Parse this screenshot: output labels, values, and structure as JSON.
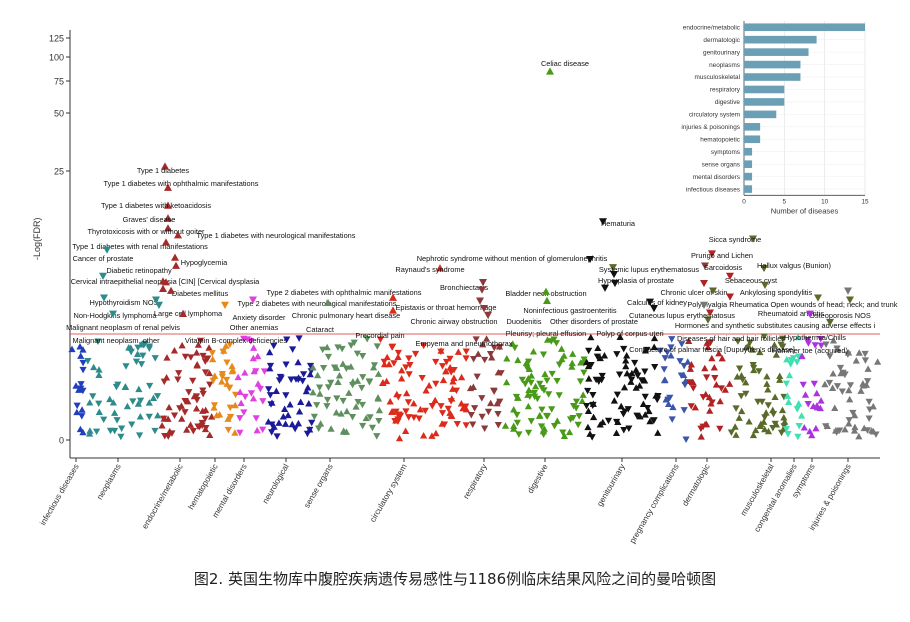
{
  "caption": "图2. 英国生物库中腹腔疾病遗传易感性与1186例临床结果风险之间的曼哈顿图",
  "chart_data": [
    {
      "type": "scatter",
      "title": "",
      "ylabel": "-Log(FDR)",
      "xlabel": "",
      "y_ticks": [
        0,
        25,
        50,
        75,
        100,
        125
      ],
      "y_scale": "compressed (sqrt-like)",
      "grid": false,
      "significance_line": true,
      "categories": [
        {
          "name": "infectious diseases",
          "color": "#1f3fbf"
        },
        {
          "name": "neoplasms",
          "color": "#2e8b8b"
        },
        {
          "name": "endocrine/metabolic",
          "color": "#a52a2a"
        },
        {
          "name": "hematopoietic",
          "color": "#e68a1c"
        },
        {
          "name": "mental disorders",
          "color": "#e040e0"
        },
        {
          "name": "neurological",
          "color": "#1a1a9a"
        },
        {
          "name": "sense organs",
          "color": "#5f8f5f"
        },
        {
          "name": "circulatory system",
          "color": "#dd2a1a"
        },
        {
          "name": "respiratory",
          "color": "#8b3a3a"
        },
        {
          "name": "digestive",
          "color": "#4a9a1a"
        },
        {
          "name": "genitourinary",
          "color": "#111111"
        },
        {
          "name": "pregnancy complications",
          "color": "#3a55aa"
        },
        {
          "name": "dermatologic",
          "color": "#b22222"
        },
        {
          "name": "musculoskeletal",
          "color": "#5a6a2a"
        },
        {
          "name": "congenital anomalies",
          "color": "#40e0b0"
        },
        {
          "name": "symptoms",
          "color": "#aa33dd"
        },
        {
          "name": "injuries & poisonings",
          "color": "#777777"
        }
      ],
      "labeled_points": [
        {
          "label": "Celiac disease",
          "category": "digestive",
          "y": 85,
          "marker": "up"
        },
        {
          "label": "Type 1 diabetes",
          "category": "endocrine/metabolic",
          "y": 27,
          "marker": "up"
        },
        {
          "label": "Type 1 diabetes with ophthalmic manifestations",
          "category": "endocrine/metabolic",
          "y": 22,
          "marker": "up"
        },
        {
          "label": "Type 1 diabetes with ketoacidosis",
          "category": "endocrine/metabolic",
          "y": 19,
          "marker": "up"
        },
        {
          "label": "Graves' disease",
          "category": "endocrine/metabolic",
          "y": 17,
          "marker": "up"
        },
        {
          "label": "Thyrotoxicosis with or without goiter",
          "category": "endocrine/metabolic",
          "y": 15.5,
          "marker": "up"
        },
        {
          "label": "Type 1 diabetes with neurological manifestations",
          "category": "endocrine/metabolic",
          "y": 14.5,
          "marker": "up"
        },
        {
          "label": "Type 1 diabetes with renal manifestations",
          "category": "endocrine/metabolic",
          "y": 13.5,
          "marker": "up"
        },
        {
          "label": "Cancer of prostate",
          "category": "neoplasms",
          "y": 12.5,
          "marker": "down"
        },
        {
          "label": "Hypoglycemia",
          "category": "endocrine/metabolic",
          "y": 11.5,
          "marker": "up"
        },
        {
          "label": "Diabetic retinopathy",
          "category": "endocrine/metabolic",
          "y": 10.5,
          "marker": "up"
        },
        {
          "label": "Cervical intraepithelial neoplasia [CIN] [Cervical dysplasia",
          "category": "neoplasms",
          "y": 9.3,
          "marker": "down"
        },
        {
          "label": "Diabetes mellitus",
          "category": "endocrine/metabolic",
          "y": 8.7,
          "marker": "up"
        },
        {
          "label": "Type 2 diabetes with ophthalmic manifestations",
          "category": "endocrine/metabolic",
          "y": 8.6,
          "marker": "up"
        },
        {
          "label": "Hypothyroidism NOS",
          "category": "endocrine/metabolic",
          "y": 7.9,
          "marker": "up"
        },
        {
          "label": "Type 2 diabetes with neurological manifestations",
          "category": "endocrine/metabolic",
          "y": 7.7,
          "marker": "up"
        },
        {
          "label": "Non-Hodgkins lymphoma",
          "category": "neoplasms",
          "y": 7.0,
          "marker": "down"
        },
        {
          "label": "Large cell lymphoma",
          "category": "neoplasms",
          "y": 6.8,
          "marker": "down"
        },
        {
          "label": "Malignant neoplasm of renal pelvis",
          "category": "neoplasms",
          "y": 6.3,
          "marker": "down"
        },
        {
          "label": "Anxiety disorder",
          "category": "mental disorders",
          "y": 6.8,
          "marker": "down"
        },
        {
          "label": "Other anemias",
          "category": "hematopoietic",
          "y": 6.3,
          "marker": "down"
        },
        {
          "label": "Malignant neoplasm, other",
          "category": "neoplasms",
          "y": 5.5,
          "marker": "down"
        },
        {
          "label": "Vitamin B-complex deficiencies",
          "category": "endocrine/metabolic",
          "y": 5.5,
          "marker": "up"
        },
        {
          "label": "Chronic pulmonary heart disease",
          "category": "circulatory system",
          "y": 7.0,
          "marker": "up"
        },
        {
          "label": "Cataract",
          "category": "sense organs",
          "y": 6.5,
          "marker": "up"
        },
        {
          "label": "Precordial pain",
          "category": "circulatory system",
          "y": 5.8,
          "marker": "up"
        },
        {
          "label": "Raynaud's syndrome",
          "category": "circulatory system",
          "y": 10.2,
          "marker": "up"
        },
        {
          "label": "Bronchiectasis",
          "category": "respiratory",
          "y": 8.6,
          "marker": "down"
        },
        {
          "label": "Epistaxis or throat hemorrhage",
          "category": "respiratory",
          "y": 7.8,
          "marker": "down"
        },
        {
          "label": "Chronic airway obstruction",
          "category": "respiratory",
          "y": 6.7,
          "marker": "down"
        },
        {
          "label": "Empyema and pneumothorax",
          "category": "respiratory",
          "y": 5.4,
          "marker": "down"
        },
        {
          "label": "Nephrotic syndrome without mention of glomerulonephritis",
          "category": "genitourinary",
          "y": 11.3,
          "marker": "down"
        },
        {
          "label": "Hematuria",
          "category": "genitourinary",
          "y": 16.5,
          "marker": "down"
        },
        {
          "label": "Systemic lupus erythematosus",
          "category": "musculoskeletal",
          "y": 10.3,
          "marker": "down"
        },
        {
          "label": "Hyperplasia of prostate",
          "category": "genitourinary",
          "y": 9.5,
          "marker": "down"
        },
        {
          "label": "Bladder neck obstruction",
          "category": "genitourinary",
          "y": 8.5,
          "marker": "down"
        },
        {
          "label": "Calculus of kidney",
          "category": "genitourinary",
          "y": 8.0,
          "marker": "down"
        },
        {
          "label": "Noninfectious gastroenteritis",
          "category": "digestive",
          "y": 7.6,
          "marker": "up"
        },
        {
          "label": "Duodenitis",
          "category": "digestive",
          "y": 6.7,
          "marker": "up"
        },
        {
          "label": "Other disorders of prostate",
          "category": "genitourinary",
          "y": 6.6,
          "marker": "down"
        },
        {
          "label": "Pleurisy; pleural effusion",
          "category": "respiratory",
          "y": 6.0,
          "marker": "down"
        },
        {
          "label": "Polyp of corpus uteri",
          "category": "genitourinary",
          "y": 6.0,
          "marker": "down"
        },
        {
          "label": "Contracture of palmar fascia [Dupuytren's disease]",
          "category": "musculoskeletal",
          "y": 5.0,
          "marker": "down"
        },
        {
          "label": "Sicca syndrome",
          "category": "musculoskeletal",
          "y": 14.0,
          "marker": "down"
        },
        {
          "label": "Prurigo and Lichen",
          "category": "dermatologic",
          "y": 12.0,
          "marker": "down"
        },
        {
          "label": "Sarcoidosis",
          "category": "respiratory",
          "y": 10.5,
          "marker": "down"
        },
        {
          "label": "Hallux valgus (Bunion)",
          "category": "musculoskeletal",
          "y": 10.2,
          "marker": "down"
        },
        {
          "label": "Sebaceous cyst",
          "category": "dermatologic",
          "y": 9.3,
          "marker": "down"
        },
        {
          "label": "Chronic ulcer of skin",
          "category": "dermatologic",
          "y": 8.5,
          "marker": "down"
        },
        {
          "label": "Ankylosing spondylitis",
          "category": "musculoskeletal",
          "y": 8.3,
          "marker": "down"
        },
        {
          "label": "Polymyalgia Rheumatica",
          "category": "musculoskeletal",
          "y": 7.7,
          "marker": "down"
        },
        {
          "label": "Open wounds of head; neck; and trunk",
          "category": "injuries & poisonings",
          "y": 7.7,
          "marker": "down"
        },
        {
          "label": "Cutaneous lupus erythematosus",
          "category": "dermatologic",
          "y": 7.1,
          "marker": "down"
        },
        {
          "label": "Rheumatoid arthritis",
          "category": "musculoskeletal",
          "y": 7.0,
          "marker": "down"
        },
        {
          "label": "Osteoporosis NOS",
          "category": "musculoskeletal",
          "y": 6.8,
          "marker": "down"
        },
        {
          "label": "Hormones and synthetic substitutes causing adverse effects i",
          "category": "injuries & poisonings",
          "y": 6.3,
          "marker": "down"
        },
        {
          "label": "Diseases of hair and hair follicles",
          "category": "dermatologic",
          "y": 5.6,
          "marker": "down"
        },
        {
          "label": "Hypothermia/Chills",
          "category": "symptoms",
          "y": 5.5,
          "marker": "down"
        },
        {
          "label": "Hammer toe (acquired)",
          "category": "musculoskeletal",
          "y": 4.8,
          "marker": "down"
        }
      ]
    },
    {
      "type": "bar",
      "orientation": "horizontal",
      "title": "",
      "xlabel": "Number of diseases",
      "ylabel": "",
      "xlim": [
        0,
        15
      ],
      "x_ticks": [
        0,
        5,
        10,
        15
      ],
      "grid": true,
      "color": "#6a9fb5",
      "categories": [
        "endocrine/metabolic",
        "dermatologic",
        "genitourinary",
        "neoplasms",
        "musculoskeletal",
        "respiratory",
        "digestive",
        "circulatory system",
        "injuries & poisonings",
        "hematopoietic",
        "symptoms",
        "sense organs",
        "mental disorders",
        "infectious diseases"
      ],
      "values": [
        15,
        9,
        8,
        7,
        7,
        5,
        5,
        4,
        2,
        2,
        1,
        1,
        1,
        1
      ]
    }
  ]
}
